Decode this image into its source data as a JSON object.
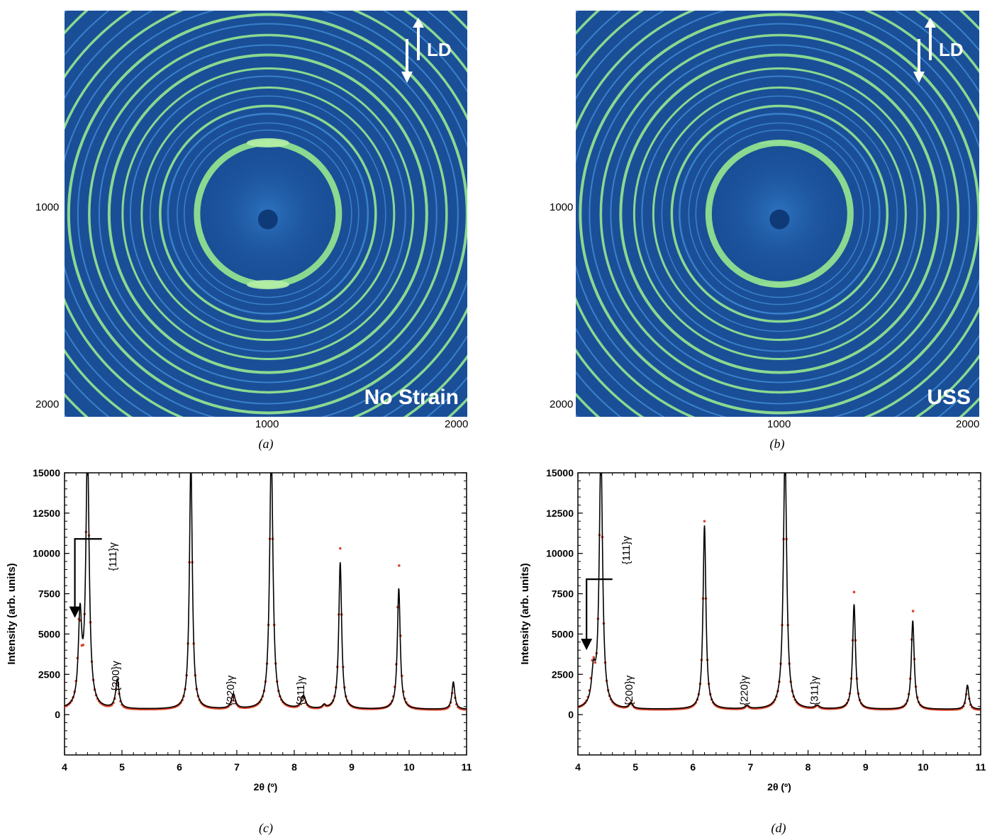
{
  "colors": {
    "ring_bg": "#1a4f98",
    "ring_bright": "#8fe08f",
    "ring_dim": "#3f8ad2",
    "fit_line": "#000000",
    "observed_points": "#d9442b",
    "panel_text": "#ffffff"
  },
  "panels": [
    {
      "id": "a",
      "caption": "(a)",
      "overlay_label": "No Strain",
      "direction_label": "LD",
      "arrow_icon": "double-arrow-vertical-icon",
      "x_ticks": [
        "1000",
        "2000"
      ],
      "y_ticks": [
        "1000",
        "2000"
      ],
      "spot_intensity": 0.9
    },
    {
      "id": "b",
      "caption": "(b)",
      "overlay_label": "USS",
      "direction_label": "LD",
      "arrow_icon": "double-arrow-vertical-icon",
      "x_ticks": [
        "1000",
        "2000"
      ],
      "y_ticks": [
        "1000",
        "2000"
      ],
      "spot_intensity": 0.25
    }
  ],
  "chart_data": [
    {
      "id": "c",
      "type": "line",
      "caption": "(c)",
      "xlabel": "2θ (º)",
      "ylabel": "Intensity (arb. units)",
      "xlim": [
        4,
        11
      ],
      "ylim": [
        -2500,
        15000
      ],
      "x_ticks": [
        "4",
        "5",
        "6",
        "7",
        "8",
        "9",
        "10",
        "11"
      ],
      "y_ticks": [
        "0",
        "2500",
        "5000",
        "7500",
        "10000",
        "12500",
        "15000"
      ],
      "baseline": 320,
      "series": [
        {
          "style": "line",
          "peaks": [
            [
              4.27,
              5500,
              0.035
            ],
            [
              4.4,
              16000,
              0.035
            ],
            [
              4.92,
              1800,
              0.035
            ],
            [
              6.2,
              15500,
              0.03
            ],
            [
              6.94,
              900,
              0.04
            ],
            [
              7.6,
              16000,
              0.035
            ],
            [
              8.16,
              800,
              0.045
            ],
            [
              8.52,
              200,
              0.03
            ],
            [
              8.8,
              9100,
              0.03
            ],
            [
              9.82,
              7500,
              0.03
            ],
            [
              10.77,
              1700,
              0.03
            ]
          ]
        },
        {
          "style": "points",
          "peaks": [
            [
              4.26,
              5200,
              0.035
            ],
            [
              4.4,
              16000,
              0.035
            ],
            [
              4.92,
              1600,
              0.035
            ],
            [
              6.2,
              15500,
              0.03
            ],
            [
              6.94,
              850,
              0.04
            ],
            [
              7.6,
              16000,
              0.035
            ],
            [
              8.16,
              750,
              0.045
            ],
            [
              8.52,
              200,
              0.03
            ],
            [
              8.8,
              10000,
              0.03
            ],
            [
              9.82,
              9200,
              0.03
            ],
            [
              10.77,
              1500,
              0.03
            ]
          ]
        }
      ],
      "annotations": [
        {
          "text": "{111}γ",
          "x": 4.9,
          "y": 9800,
          "rotated": true,
          "arrow": {
            "from": [
              4.65,
              10900
            ],
            "to": [
              4.18,
              6000
            ]
          }
        },
        {
          "text": "{200}γ",
          "x": 4.95,
          "y": 2400,
          "rotated": true
        },
        {
          "text": "{220}γ",
          "x": 6.95,
          "y": 1500,
          "rotated": true
        },
        {
          "text": "{311}γ",
          "x": 8.17,
          "y": 1500,
          "rotated": true
        }
      ]
    },
    {
      "id": "d",
      "type": "line",
      "caption": "(d)",
      "xlabel": "2θ (º)",
      "ylabel": "Intensity (arb. units)",
      "xlim": [
        4,
        11
      ],
      "ylim": [
        -2500,
        15000
      ],
      "x_ticks": [
        "4",
        "5",
        "6",
        "7",
        "8",
        "9",
        "10",
        "11"
      ],
      "y_ticks": [
        "0",
        "2500",
        "5000",
        "7500",
        "10000",
        "12500",
        "15000"
      ],
      "baseline": 320,
      "series": [
        {
          "style": "line",
          "peaks": [
            [
              4.27,
              2000,
              0.04
            ],
            [
              4.4,
              16000,
              0.035
            ],
            [
              4.92,
              350,
              0.035
            ],
            [
              6.2,
              11400,
              0.03
            ],
            [
              6.94,
              200,
              0.04
            ],
            [
              7.6,
              16000,
              0.035
            ],
            [
              8.16,
              200,
              0.045
            ],
            [
              8.8,
              6500,
              0.03
            ],
            [
              9.82,
              5500,
              0.03
            ],
            [
              10.77,
              1500,
              0.03
            ]
          ]
        },
        {
          "style": "points",
          "peaks": [
            [
              4.26,
              2400,
              0.04
            ],
            [
              4.4,
              16000,
              0.035
            ],
            [
              4.92,
              400,
              0.035
            ],
            [
              6.2,
              11700,
              0.03
            ],
            [
              6.94,
              200,
              0.04
            ],
            [
              7.6,
              16000,
              0.035
            ],
            [
              8.16,
              200,
              0.045
            ],
            [
              8.8,
              7300,
              0.03
            ],
            [
              9.82,
              6300,
              0.03
            ],
            [
              10.77,
              1400,
              0.03
            ]
          ]
        }
      ],
      "annotations": [
        {
          "text": "{111}γ",
          "x": 4.9,
          "y": 10200,
          "rotated": true,
          "arrow": {
            "from": [
              4.6,
              8400
            ],
            "to": [
              4.15,
              4000
            ]
          }
        },
        {
          "text": "{200}γ",
          "x": 4.95,
          "y": 1500,
          "rotated": true
        },
        {
          "text": "{220}γ",
          "x": 6.95,
          "y": 1500,
          "rotated": true
        },
        {
          "text": "{311}γ",
          "x": 8.17,
          "y": 1500,
          "rotated": true
        }
      ]
    }
  ]
}
